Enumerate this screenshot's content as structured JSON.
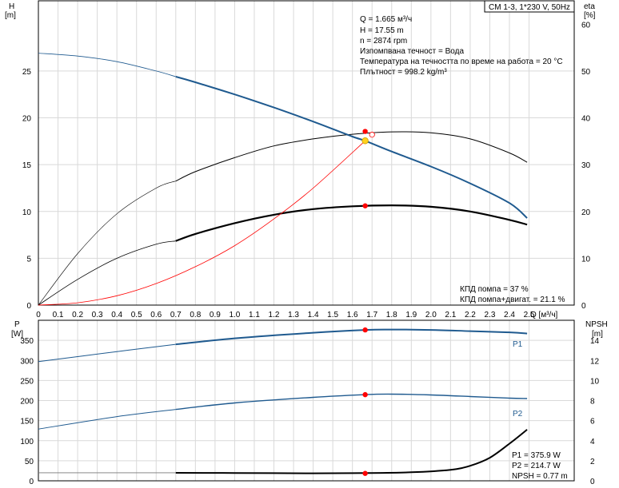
{
  "title": "CM 1-3, 1*230 V, 50Hz",
  "top": {
    "y_left": {
      "label1": "H",
      "label2": "[m]",
      "ticks": [
        0,
        5,
        10,
        15,
        20,
        25
      ],
      "range": [
        0,
        32.5
      ]
    },
    "y_right": {
      "label1": "eta",
      "label2": "[%]",
      "ticks": [
        0,
        10,
        20,
        30,
        40,
        50,
        60
      ],
      "range": [
        0,
        65
      ]
    },
    "x": {
      "label": "Q [м³/ч]",
      "ticks": [
        "0",
        "0.1",
        "0.2",
        "0.3",
        "0.4",
        "0.5",
        "0.6",
        "0.7",
        "0.8",
        "0.9",
        "1.0",
        "1.1",
        "1.2",
        "1.3",
        "1.4",
        "1.5",
        "1.6",
        "1.7",
        "1.8",
        "1.9",
        "2.0",
        "2.1",
        "2.2",
        "2.3",
        "2.4",
        "2.5"
      ],
      "range": [
        0,
        2.73
      ]
    },
    "info": [
      "Q = 1.665 м³/ч",
      "H = 17.55 m",
      "n = 2874 rpm",
      "Изпомпвана течност = Вода",
      "Температура на течността по време на работа = 20 °C",
      "Плътност = 998.2 kg/m³"
    ],
    "eff_info": [
      "КПД помпа = 37 %",
      "КПД помпа+двигат. = 21.1 %"
    ]
  },
  "bottom": {
    "y_left": {
      "label1": "P",
      "label2": "[W]",
      "ticks": [
        0,
        50,
        100,
        150,
        200,
        250,
        300,
        350
      ],
      "range": [
        0,
        400
      ]
    },
    "y_right": {
      "label1": "NPSH",
      "label2": "[m]",
      "ticks": [
        0,
        2,
        4,
        6,
        8,
        10,
        12,
        14
      ],
      "range": [
        0,
        16
      ]
    },
    "series_labels": {
      "p1": "P1",
      "p2": "P2"
    },
    "info": [
      "P1 = 375.9 W",
      "P2 = 214.7 W",
      "NPSH = 0.77 m"
    ]
  },
  "colors": {
    "blue": "#1f5a8f",
    "red": "#ff0000",
    "yellow": "#ffd21f",
    "black": "#000000",
    "grid": "#d9d9d9"
  },
  "chart_data": [
    {
      "type": "line",
      "title": "CM 1-3, 1*230 V, 50Hz",
      "xlabel": "Q [м³/ч]",
      "ylabel": "H [m]",
      "y2label": "eta [%]",
      "xlim": [
        0,
        2.73
      ],
      "ylim": [
        0,
        32.5
      ],
      "y2lim": [
        0,
        65
      ],
      "grid": true,
      "series": [
        {
          "key": "h",
          "axis": "left",
          "x": [
            0,
            0.2,
            0.4,
            0.6,
            0.7,
            0.8,
            1.0,
            1.2,
            1.4,
            1.6,
            1.665,
            1.8,
            2.0,
            2.2,
            2.4,
            2.49
          ],
          "values": [
            26.9,
            26.6,
            26.0,
            25.0,
            24.4,
            23.8,
            22.5,
            21.1,
            19.6,
            18.0,
            17.55,
            16.4,
            14.8,
            13.0,
            10.9,
            9.3
          ]
        },
        {
          "key": "system",
          "axis": "left",
          "x": [
            0,
            0.2,
            0.4,
            0.6,
            0.8,
            1.0,
            1.2,
            1.4,
            1.665
          ],
          "values": [
            0,
            0.25,
            1.0,
            2.3,
            4.1,
            6.35,
            9.2,
            12.5,
            17.55
          ]
        },
        {
          "key": "eta_pump",
          "axis": "right",
          "x": [
            0,
            0.2,
            0.4,
            0.6,
            0.7,
            0.8,
            1.0,
            1.2,
            1.4,
            1.6,
            1.8,
            2.0,
            2.2,
            2.4,
            2.49
          ],
          "values": [
            0,
            11,
            19.5,
            25,
            26.5,
            28.5,
            31.5,
            34,
            35.5,
            36.5,
            37,
            36.8,
            35.5,
            32.5,
            30.5
          ]
        },
        {
          "key": "eta_total",
          "axis": "right",
          "x": [
            0,
            0.2,
            0.4,
            0.6,
            0.7,
            0.8,
            1.0,
            1.2,
            1.4,
            1.6,
            1.8,
            2.0,
            2.2,
            2.4,
            2.49
          ],
          "values": [
            0,
            5.5,
            10,
            13,
            13.7,
            15.2,
            17.5,
            19.3,
            20.5,
            21.1,
            21.3,
            21,
            20,
            18.2,
            17.2
          ]
        }
      ],
      "markers": [
        {
          "x": 1.665,
          "y": 18.55,
          "kind": "red"
        },
        {
          "x": 1.665,
          "y": 17.55,
          "kind": "yellow"
        },
        {
          "x": 1.7,
          "y": 18.2,
          "kind": "open"
        },
        {
          "x": 1.665,
          "y": 10.6,
          "kind": "red"
        }
      ]
    },
    {
      "type": "line",
      "ylabel": "P [W]",
      "y2label": "NPSH [m]",
      "xlim": [
        0,
        2.73
      ],
      "ylim": [
        0,
        400
      ],
      "y2lim": [
        0,
        16
      ],
      "grid": true,
      "series": [
        {
          "key": "p1",
          "name": "P1",
          "axis": "left",
          "x": [
            0,
            0.4,
            0.7,
            1.0,
            1.4,
            1.665,
            1.8,
            2.0,
            2.2,
            2.4,
            2.49
          ],
          "values": [
            297,
            322,
            340,
            355,
            369,
            375.9,
            377,
            376,
            373,
            370,
            367
          ]
        },
        {
          "key": "p2",
          "name": "P2",
          "axis": "left",
          "x": [
            0,
            0.4,
            0.7,
            1.0,
            1.4,
            1.665,
            1.8,
            2.0,
            2.2,
            2.4,
            2.49
          ],
          "values": [
            129,
            160,
            178,
            194,
            208,
            214.7,
            216,
            214,
            210,
            206,
            205
          ]
        },
        {
          "key": "npsh",
          "axis": "right",
          "x": [
            0.7,
            1.0,
            1.4,
            1.665,
            1.9,
            2.1,
            2.2,
            2.3,
            2.4,
            2.49
          ],
          "values": [
            0.8,
            0.78,
            0.75,
            0.77,
            0.85,
            1.1,
            1.5,
            2.3,
            3.7,
            5.1
          ]
        }
      ],
      "markers": [
        {
          "x": 1.665,
          "y": 375.9,
          "kind": "red"
        },
        {
          "x": 1.665,
          "y": 214.7,
          "kind": "red"
        },
        {
          "x": 1.665,
          "y": 18.5,
          "kind": "red"
        }
      ]
    }
  ]
}
